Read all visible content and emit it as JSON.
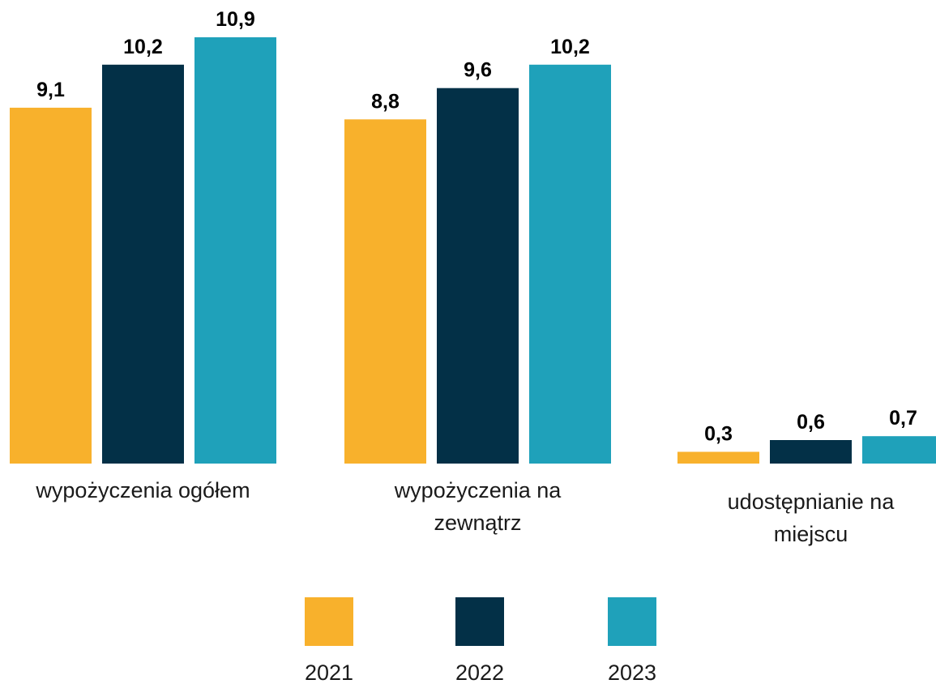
{
  "chart_data": {
    "type": "bar",
    "categories": [
      [
        "wypożyczenia ogółem"
      ],
      [
        "wypożyczenia na",
        "zewnątrz"
      ],
      [
        "udostępnianie na",
        "miejscu"
      ]
    ],
    "series": [
      {
        "name": "2021",
        "color": "#F8B12C",
        "values": [
          9.1,
          8.8,
          0.3
        ],
        "labels": [
          "9,1",
          "8,8",
          "0,3"
        ]
      },
      {
        "name": "2022",
        "color": "#033047",
        "values": [
          10.2,
          9.6,
          0.6
        ],
        "labels": [
          "10,2",
          "9,6",
          "0,6"
        ]
      },
      {
        "name": "2023",
        "color": "#1FA1BA",
        "values": [
          10.9,
          10.2,
          0.7
        ],
        "labels": [
          "10,9",
          "10,2",
          "0,7"
        ]
      }
    ],
    "ylim": [
      0,
      10.9
    ],
    "legend_position": "bottom",
    "grid": false,
    "title": "",
    "xlabel": "",
    "ylabel": ""
  }
}
